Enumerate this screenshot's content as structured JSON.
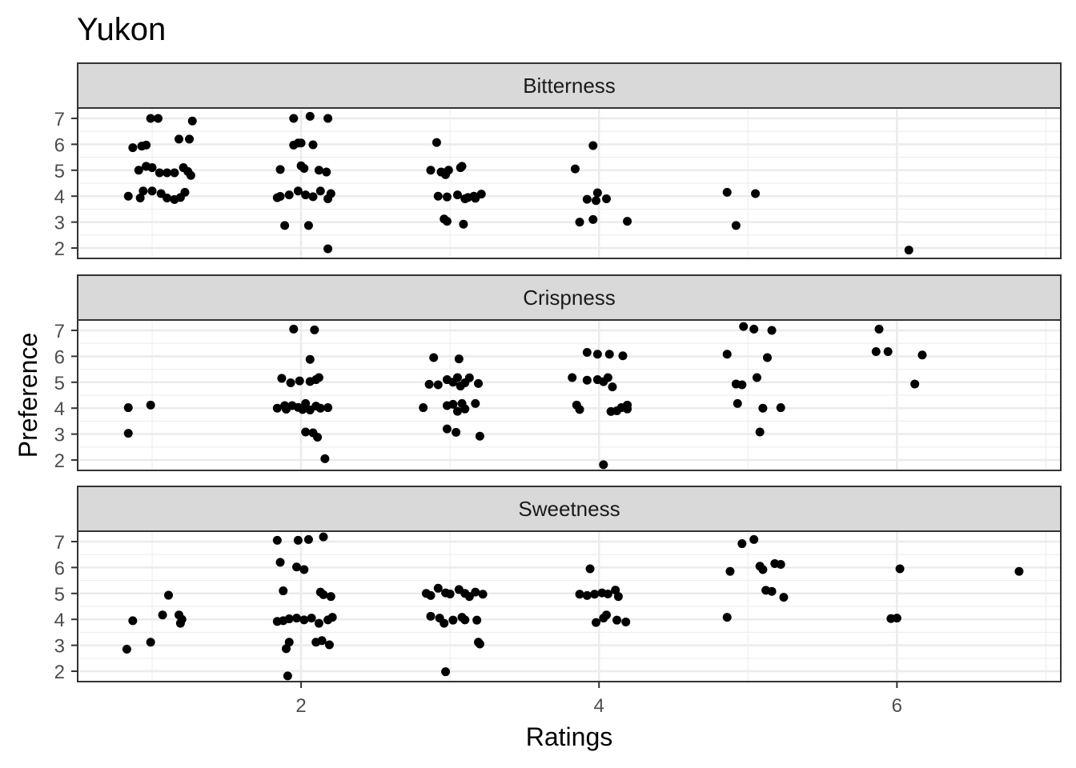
{
  "chart_data": {
    "type": "scatter",
    "title": "Yukon",
    "xlabel": "Ratings",
    "ylabel": "Preference",
    "xlim": [
      0.5,
      7.1
    ],
    "x_ticks": [
      2,
      4,
      6
    ],
    "y_ticks": [
      2,
      3,
      4,
      5,
      6,
      7
    ],
    "grid": true,
    "colors": {
      "point": "#000000",
      "strip_fill": "#d9d9d9",
      "panel_border": "#333333",
      "grid_major": "#ebebeb",
      "tick_text": "#4d4d4d"
    },
    "panels": [
      {
        "name": "Bitterness",
        "ylim": [
          1.6,
          7.4
        ],
        "points": [
          [
            0.84,
            4.0
          ],
          [
            0.92,
            3.93
          ],
          [
            0.94,
            4.2
          ],
          [
            0.87,
            5.87
          ],
          [
            0.93,
            5.93
          ],
          [
            0.96,
            5.97
          ],
          [
            0.91,
            5.0
          ],
          [
            0.96,
            5.15
          ],
          [
            1.0,
            5.1
          ],
          [
            1.05,
            4.9
          ],
          [
            1.1,
            4.9
          ],
          [
            1.15,
            4.9
          ],
          [
            1.0,
            4.2
          ],
          [
            1.06,
            4.1
          ],
          [
            1.1,
            3.93
          ],
          [
            1.15,
            3.87
          ],
          [
            1.19,
            3.95
          ],
          [
            1.22,
            4.15
          ],
          [
            0.99,
            7.0
          ],
          [
            1.04,
            7.0
          ],
          [
            1.18,
            6.2
          ],
          [
            1.25,
            6.2
          ],
          [
            1.27,
            6.9
          ],
          [
            1.21,
            5.1
          ],
          [
            1.24,
            4.95
          ],
          [
            1.26,
            4.8
          ],
          [
            1.84,
            3.94
          ],
          [
            1.86,
            3.99
          ],
          [
            1.92,
            4.05
          ],
          [
            1.98,
            4.2
          ],
          [
            2.03,
            4.05
          ],
          [
            2.08,
            3.98
          ],
          [
            2.13,
            4.2
          ],
          [
            2.18,
            3.9
          ],
          [
            2.2,
            4.1
          ],
          [
            1.89,
            2.87
          ],
          [
            2.05,
            2.87
          ],
          [
            2.18,
            1.97
          ],
          [
            1.86,
            5.03
          ],
          [
            2.0,
            5.17
          ],
          [
            2.02,
            5.07
          ],
          [
            2.12,
            5.0
          ],
          [
            2.17,
            4.93
          ],
          [
            1.95,
            5.97
          ],
          [
            1.98,
            6.05
          ],
          [
            2.0,
            6.05
          ],
          [
            2.08,
            5.98
          ],
          [
            1.95,
            7.0
          ],
          [
            2.06,
            7.08
          ],
          [
            2.18,
            7.0
          ],
          [
            2.87,
            5.0
          ],
          [
            2.94,
            4.93
          ],
          [
            2.97,
            4.83
          ],
          [
            2.99,
            5.0
          ],
          [
            3.07,
            5.1
          ],
          [
            3.08,
            5.15
          ],
          [
            2.92,
            4.0
          ],
          [
            2.98,
            3.97
          ],
          [
            3.05,
            4.05
          ],
          [
            3.1,
            3.9
          ],
          [
            3.17,
            3.92
          ],
          [
            3.21,
            4.08
          ],
          [
            2.96,
            3.12
          ],
          [
            2.98,
            3.03
          ],
          [
            3.09,
            2.92
          ],
          [
            2.91,
            6.07
          ],
          [
            2.96,
            4.9
          ],
          [
            3.12,
            3.95
          ],
          [
            3.16,
            4.0
          ],
          [
            3.84,
            5.05
          ],
          [
            3.87,
            3.0
          ],
          [
            3.92,
            3.88
          ],
          [
            3.98,
            3.83
          ],
          [
            3.99,
            4.13
          ],
          [
            4.05,
            3.9
          ],
          [
            3.96,
            3.1
          ],
          [
            4.19,
            3.03
          ],
          [
            3.96,
            5.95
          ],
          [
            4.86,
            4.15
          ],
          [
            4.92,
            2.87
          ],
          [
            5.05,
            4.1
          ],
          [
            6.08,
            1.92
          ]
        ]
      },
      {
        "name": "Crispness",
        "ylim": [
          1.6,
          7.4
        ],
        "points": [
          [
            0.84,
            4.02
          ],
          [
            0.84,
            3.03
          ],
          [
            0.99,
            4.12
          ],
          [
            1.84,
            4.0
          ],
          [
            1.89,
            4.1
          ],
          [
            1.9,
            3.96
          ],
          [
            1.94,
            4.1
          ],
          [
            1.98,
            4.03
          ],
          [
            2.01,
            3.95
          ],
          [
            2.03,
            4.18
          ],
          [
            2.06,
            3.93
          ],
          [
            2.1,
            4.08
          ],
          [
            2.13,
            4.0
          ],
          [
            2.18,
            4.02
          ],
          [
            1.87,
            5.15
          ],
          [
            1.93,
            4.98
          ],
          [
            1.99,
            5.05
          ],
          [
            2.06,
            5.03
          ],
          [
            2.1,
            5.1
          ],
          [
            2.12,
            5.18
          ],
          [
            2.06,
            5.88
          ],
          [
            1.95,
            7.05
          ],
          [
            2.09,
            7.02
          ],
          [
            2.03,
            3.08
          ],
          [
            2.08,
            3.05
          ],
          [
            2.11,
            2.88
          ],
          [
            2.16,
            2.05
          ],
          [
            2.82,
            4.02
          ],
          [
            2.86,
            4.92
          ],
          [
            2.92,
            4.9
          ],
          [
            2.98,
            5.1
          ],
          [
            3.02,
            5.0
          ],
          [
            3.05,
            5.18
          ],
          [
            3.07,
            4.85
          ],
          [
            3.1,
            4.98
          ],
          [
            3.13,
            5.17
          ],
          [
            3.19,
            4.95
          ],
          [
            2.98,
            4.1
          ],
          [
            3.02,
            4.15
          ],
          [
            3.05,
            3.88
          ],
          [
            3.08,
            4.18
          ],
          [
            3.1,
            3.97
          ],
          [
            3.17,
            4.18
          ],
          [
            2.98,
            3.2
          ],
          [
            3.04,
            3.07
          ],
          [
            3.2,
            2.92
          ],
          [
            2.89,
            5.95
          ],
          [
            3.06,
            5.9
          ],
          [
            3.82,
            5.18
          ],
          [
            3.85,
            4.12
          ],
          [
            3.87,
            3.95
          ],
          [
            3.92,
            5.08
          ],
          [
            3.99,
            5.1
          ],
          [
            4.03,
            5.02
          ],
          [
            4.06,
            5.18
          ],
          [
            4.09,
            4.82
          ],
          [
            3.92,
            6.15
          ],
          [
            3.99,
            6.08
          ],
          [
            4.07,
            6.08
          ],
          [
            4.16,
            6.02
          ],
          [
            4.08,
            3.87
          ],
          [
            4.12,
            3.9
          ],
          [
            4.15,
            4.02
          ],
          [
            4.19,
            3.97
          ],
          [
            4.19,
            4.12
          ],
          [
            4.03,
            1.82
          ],
          [
            4.86,
            6.08
          ],
          [
            4.92,
            4.93
          ],
          [
            4.96,
            4.9
          ],
          [
            4.93,
            4.18
          ],
          [
            4.97,
            7.15
          ],
          [
            5.04,
            7.05
          ],
          [
            5.16,
            7.0
          ],
          [
            5.13,
            5.95
          ],
          [
            5.06,
            5.18
          ],
          [
            5.08,
            3.08
          ],
          [
            5.1,
            4.0
          ],
          [
            5.22,
            4.02
          ],
          [
            5.88,
            7.05
          ],
          [
            5.86,
            6.18
          ],
          [
            5.94,
            6.18
          ],
          [
            6.17,
            6.05
          ],
          [
            6.12,
            4.93
          ]
        ]
      },
      {
        "name": "Sweetness",
        "ylim": [
          1.6,
          7.4
        ],
        "points": [
          [
            0.83,
            2.85
          ],
          [
            0.87,
            3.95
          ],
          [
            0.99,
            3.12
          ],
          [
            1.07,
            4.17
          ],
          [
            1.11,
            4.93
          ],
          [
            1.18,
            4.17
          ],
          [
            1.19,
            3.85
          ],
          [
            1.2,
            4.0
          ],
          [
            1.84,
            7.05
          ],
          [
            1.98,
            7.05
          ],
          [
            2.05,
            7.08
          ],
          [
            2.15,
            7.18
          ],
          [
            1.86,
            6.2
          ],
          [
            1.97,
            6.02
          ],
          [
            2.02,
            5.92
          ],
          [
            1.88,
            5.1
          ],
          [
            2.13,
            5.05
          ],
          [
            2.15,
            4.95
          ],
          [
            2.2,
            4.88
          ],
          [
            1.84,
            3.92
          ],
          [
            1.88,
            3.95
          ],
          [
            1.92,
            4.02
          ],
          [
            1.97,
            4.05
          ],
          [
            2.02,
            3.98
          ],
          [
            2.07,
            4.05
          ],
          [
            2.12,
            3.85
          ],
          [
            2.18,
            3.98
          ],
          [
            2.21,
            4.08
          ],
          [
            1.92,
            3.12
          ],
          [
            1.9,
            2.87
          ],
          [
            2.1,
            3.12
          ],
          [
            2.14,
            3.18
          ],
          [
            2.19,
            3.02
          ],
          [
            1.91,
            1.82
          ],
          [
            2.84,
            5.0
          ],
          [
            2.87,
            4.92
          ],
          [
            2.92,
            5.2
          ],
          [
            2.97,
            5.02
          ],
          [
            3.0,
            4.98
          ],
          [
            3.06,
            5.15
          ],
          [
            3.1,
            5.0
          ],
          [
            3.13,
            4.88
          ],
          [
            3.17,
            5.05
          ],
          [
            3.22,
            4.97
          ],
          [
            2.87,
            4.12
          ],
          [
            2.93,
            4.05
          ],
          [
            2.96,
            3.85
          ],
          [
            3.02,
            3.97
          ],
          [
            3.08,
            4.08
          ],
          [
            3.1,
            3.98
          ],
          [
            3.18,
            3.97
          ],
          [
            3.19,
            3.12
          ],
          [
            3.2,
            3.05
          ],
          [
            2.97,
            1.98
          ],
          [
            3.87,
            4.97
          ],
          [
            3.92,
            4.92
          ],
          [
            3.97,
            4.97
          ],
          [
            4.02,
            5.02
          ],
          [
            4.06,
            4.98
          ],
          [
            4.11,
            5.13
          ],
          [
            4.13,
            4.88
          ],
          [
            3.94,
            5.95
          ],
          [
            3.98,
            3.88
          ],
          [
            4.03,
            4.05
          ],
          [
            4.05,
            4.17
          ],
          [
            4.12,
            3.97
          ],
          [
            4.18,
            3.9
          ],
          [
            4.86,
            4.08
          ],
          [
            4.88,
            5.85
          ],
          [
            4.96,
            6.92
          ],
          [
            5.04,
            7.08
          ],
          [
            5.08,
            6.05
          ],
          [
            5.1,
            5.92
          ],
          [
            5.12,
            5.12
          ],
          [
            5.16,
            5.08
          ],
          [
            5.18,
            6.15
          ],
          [
            5.22,
            6.12
          ],
          [
            5.24,
            4.85
          ],
          [
            6.02,
            5.95
          ],
          [
            5.96,
            4.03
          ],
          [
            6.0,
            4.05
          ],
          [
            6.82,
            5.85
          ]
        ]
      }
    ]
  }
}
